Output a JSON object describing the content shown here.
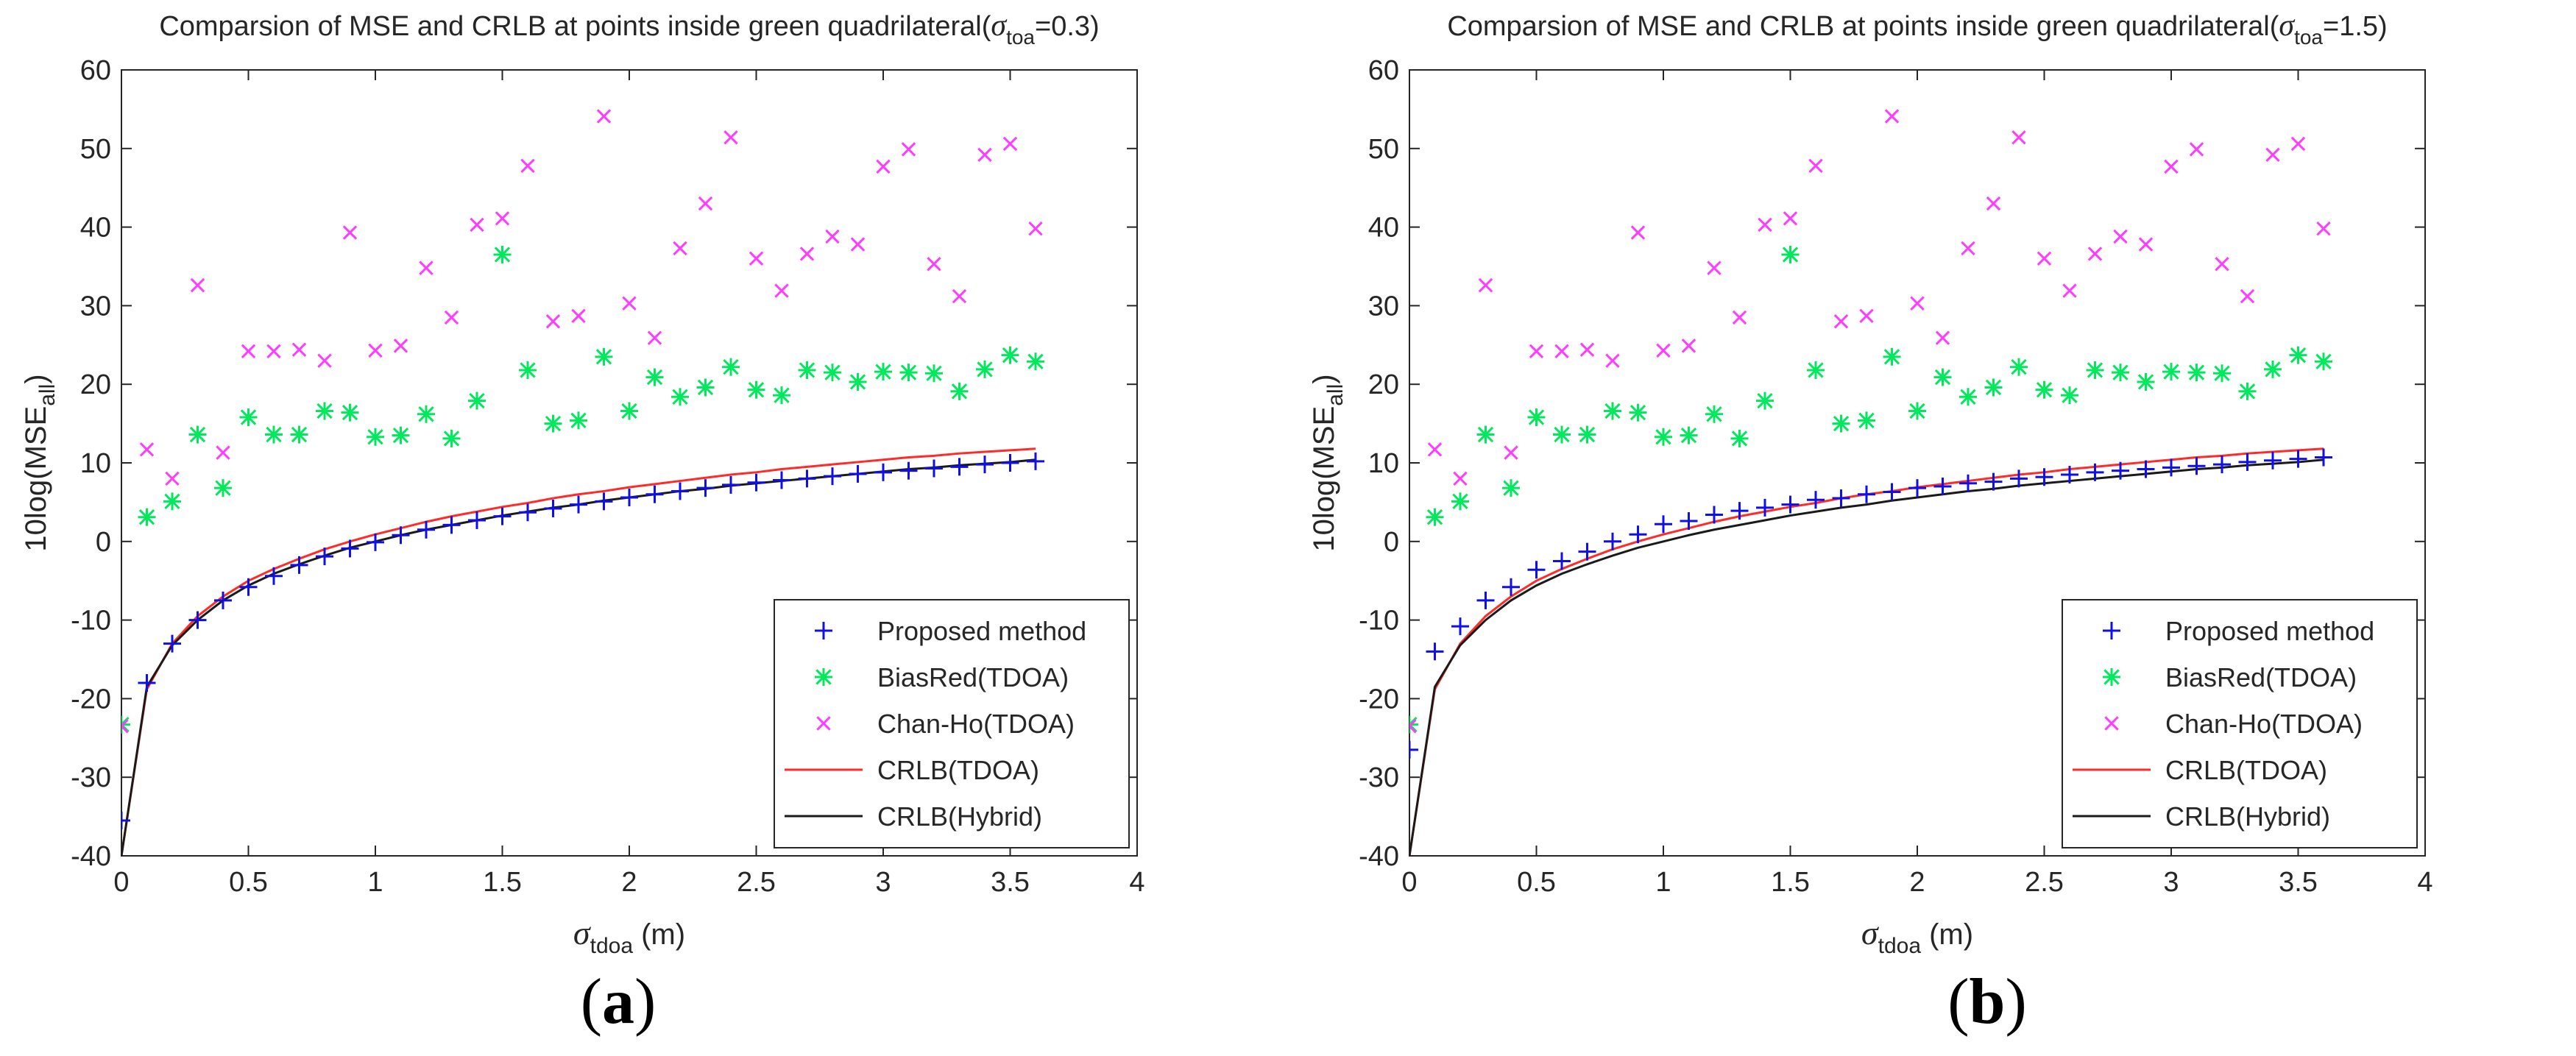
{
  "chart_data": [
    {
      "panel_label": "a",
      "type": "scatter",
      "title": "Comparsion of MSE and CRLB at points inside green quadrilateral(",
      "title_sigma": "σ",
      "title_sigma_sub": "toa",
      "title_value": "=0.3)",
      "xlabel_sigma": "σ",
      "xlabel_sub": "tdoa",
      "xlabel_unit": " (m)",
      "ylabel_prefix": "10log(MSE",
      "ylabel_sub": "all",
      "ylabel_suffix": ")",
      "xlim": [
        0,
        4
      ],
      "ylim": [
        -40,
        60
      ],
      "xticks": [
        "0",
        "0.5",
        "1",
        "1.5",
        "2",
        "2.5",
        "3",
        "3.5",
        "4"
      ],
      "yticks": [
        "-40",
        "-30",
        "-20",
        "-10",
        "0",
        "10",
        "20",
        "30",
        "40",
        "50",
        "60"
      ],
      "legend_position": "bottom-right",
      "x": [
        0,
        0.1,
        0.2,
        0.3,
        0.4,
        0.5,
        0.6,
        0.7,
        0.8,
        0.9,
        1.0,
        1.1,
        1.2,
        1.3,
        1.4,
        1.5,
        1.6,
        1.7,
        1.8,
        1.9,
        2.0,
        2.1,
        2.2,
        2.3,
        2.4,
        2.5,
        2.6,
        2.7,
        2.8,
        2.9,
        3.0,
        3.1,
        3.2,
        3.3,
        3.4,
        3.5,
        3.6
      ],
      "series": [
        {
          "name": "Proposed method",
          "marker": "plus",
          "color": "#1010e6",
          "values": [
            -35.5,
            -18,
            -13,
            -10,
            -7.5,
            -5.8,
            -4.4,
            -3,
            -1.9,
            -0.9,
            -0.1,
            0.8,
            1.5,
            2.1,
            2.7,
            3.2,
            3.7,
            4.2,
            4.7,
            5.1,
            5.6,
            6.0,
            6.4,
            6.8,
            7.2,
            7.5,
            7.8,
            8.0,
            8.3,
            8.6,
            8.8,
            9.0,
            9.3,
            9.5,
            9.8,
            10.0,
            10.2
          ]
        },
        {
          "name": "BiasRed(TDOA)",
          "marker": "asterisk",
          "color": "#00e85c",
          "values": [
            -23.3,
            3.1,
            5.1,
            13.6,
            6.8,
            15.8,
            13.6,
            13.6,
            16.6,
            16.4,
            13.3,
            13.5,
            16.2,
            13.1,
            17.9,
            36.5,
            21.8,
            15.0,
            15.4,
            23.5,
            16.6,
            20.9,
            18.4,
            19.6,
            22.2,
            19.3,
            18.6,
            21.8,
            21.5,
            20.3,
            21.6,
            21.5,
            21.4,
            19.1,
            21.9,
            23.7,
            22.9
          ]
        },
        {
          "name": "Chan-Ho(TDOA)",
          "marker": "cross",
          "color": "#ff3cff",
          "values": [
            -23.5,
            11.7,
            8.0,
            32.6,
            11.3,
            24.2,
            24.2,
            24.4,
            23.0,
            39.3,
            24.3,
            24.9,
            34.8,
            28.5,
            40.3,
            41.1,
            47.8,
            28.0,
            28.7,
            54.1,
            30.3,
            25.9,
            37.3,
            43.0,
            51.4,
            36.0,
            31.9,
            36.6,
            38.8,
            37.8,
            47.7,
            49.9,
            35.3,
            31.2,
            49.2,
            50.6,
            39.8
          ]
        },
        {
          "name": "CRLB(TDOA)",
          "marker": "line",
          "color": "#ff2a2a",
          "values": [
            -40,
            -18.8,
            -13,
            -9.5,
            -7.0,
            -5.0,
            -3.5,
            -2.2,
            -1.0,
            0.0,
            0.9,
            1.7,
            2.5,
            3.2,
            3.8,
            4.4,
            4.9,
            5.5,
            6.0,
            6.4,
            6.9,
            7.3,
            7.7,
            8.1,
            8.5,
            8.8,
            9.2,
            9.5,
            9.8,
            10.1,
            10.4,
            10.7,
            10.9,
            11.2,
            11.4,
            11.6,
            11.8
          ]
        },
        {
          "name": "CRLB(Hybrid)",
          "marker": "line",
          "color": "#1a1a1a",
          "values": [
            -40,
            -18.5,
            -13.2,
            -10,
            -7.5,
            -5.6,
            -4.1,
            -2.9,
            -1.8,
            -0.8,
            0.0,
            0.8,
            1.5,
            2.1,
            2.7,
            3.3,
            3.8,
            4.3,
            4.7,
            5.2,
            5.6,
            6.0,
            6.4,
            6.7,
            7.1,
            7.4,
            7.7,
            8.0,
            8.3,
            8.6,
            8.9,
            9.2,
            9.4,
            9.7,
            9.9,
            10.1,
            10.4
          ]
        }
      ]
    },
    {
      "panel_label": "b",
      "type": "scatter",
      "title": "Comparsion of MSE and CRLB at points inside green quadrilateral(",
      "title_sigma": "σ",
      "title_sigma_sub": "toa",
      "title_value": "=1.5)",
      "xlabel_sigma": "σ",
      "xlabel_sub": "tdoa",
      "xlabel_unit": " (m)",
      "ylabel_prefix": "10log(MSE",
      "ylabel_sub": "all",
      "ylabel_suffix": ")",
      "xlim": [
        0,
        4
      ],
      "ylim": [
        -40,
        60
      ],
      "xticks": [
        "0",
        "0.5",
        "1",
        "1.5",
        "2",
        "2.5",
        "3",
        "3.5",
        "4"
      ],
      "yticks": [
        "-40",
        "-30",
        "-20",
        "-10",
        "0",
        "10",
        "20",
        "30",
        "40",
        "50",
        "60"
      ],
      "legend_position": "bottom-right",
      "x": [
        0,
        0.1,
        0.2,
        0.3,
        0.4,
        0.5,
        0.6,
        0.7,
        0.8,
        0.9,
        1.0,
        1.1,
        1.2,
        1.3,
        1.4,
        1.5,
        1.6,
        1.7,
        1.8,
        1.9,
        2.0,
        2.1,
        2.2,
        2.3,
        2.4,
        2.5,
        2.6,
        2.7,
        2.8,
        2.9,
        3.0,
        3.1,
        3.2,
        3.3,
        3.4,
        3.5,
        3.6
      ],
      "series": [
        {
          "name": "Proposed method",
          "marker": "plus",
          "color": "#1010e6",
          "values": [
            -26.5,
            -14,
            -10.8,
            -7.5,
            -5.8,
            -3.6,
            -2.5,
            -1.3,
            0.0,
            0.9,
            2.2,
            2.6,
            3.4,
            3.9,
            4.3,
            4.7,
            5.3,
            5.5,
            6.0,
            6.3,
            6.8,
            7.0,
            7.4,
            7.6,
            8.0,
            8.2,
            8.5,
            8.8,
            9.0,
            9.2,
            9.4,
            9.6,
            9.8,
            10.1,
            10.3,
            10.5,
            10.7
          ]
        },
        {
          "name": "BiasRed(TDOA)",
          "marker": "asterisk",
          "color": "#00e85c",
          "values": [
            -23.3,
            3.1,
            5.1,
            13.6,
            6.8,
            15.8,
            13.6,
            13.6,
            16.6,
            16.4,
            13.3,
            13.5,
            16.2,
            13.1,
            17.9,
            36.5,
            21.8,
            15.0,
            15.4,
            23.5,
            16.6,
            20.9,
            18.4,
            19.6,
            22.2,
            19.3,
            18.6,
            21.8,
            21.5,
            20.3,
            21.6,
            21.5,
            21.4,
            19.1,
            21.9,
            23.7,
            22.9
          ]
        },
        {
          "name": "Chan-Ho(TDOA)",
          "marker": "cross",
          "color": "#ff3cff",
          "values": [
            -23.5,
            11.7,
            8.0,
            32.6,
            11.3,
            24.2,
            24.2,
            24.4,
            23.0,
            39.3,
            24.3,
            24.9,
            34.8,
            28.5,
            40.3,
            41.1,
            47.8,
            28.0,
            28.7,
            54.1,
            30.3,
            25.9,
            37.3,
            43.0,
            51.4,
            36.0,
            31.9,
            36.6,
            38.8,
            37.8,
            47.7,
            49.9,
            35.3,
            31.2,
            49.2,
            50.6,
            39.8
          ]
        },
        {
          "name": "CRLB(TDOA)",
          "marker": "line",
          "color": "#ff2a2a",
          "values": [
            -40,
            -18.8,
            -13,
            -9.5,
            -7.0,
            -5.0,
            -3.5,
            -2.2,
            -1.0,
            0.0,
            0.9,
            1.7,
            2.5,
            3.2,
            3.8,
            4.4,
            4.9,
            5.5,
            6.0,
            6.4,
            6.9,
            7.3,
            7.7,
            8.1,
            8.5,
            8.8,
            9.2,
            9.5,
            9.8,
            10.1,
            10.4,
            10.7,
            10.9,
            11.2,
            11.4,
            11.6,
            11.8
          ]
        },
        {
          "name": "CRLB(Hybrid)",
          "marker": "line",
          "color": "#1a1a1a",
          "values": [
            -40,
            -18.5,
            -13.2,
            -10,
            -7.5,
            -5.6,
            -4.1,
            -2.9,
            -1.8,
            -0.8,
            0.0,
            0.8,
            1.5,
            2.1,
            2.7,
            3.3,
            3.8,
            4.3,
            4.7,
            5.2,
            5.6,
            6.0,
            6.4,
            6.7,
            7.1,
            7.4,
            7.7,
            8.0,
            8.3,
            8.6,
            8.9,
            9.2,
            9.4,
            9.7,
            9.9,
            10.1,
            10.4
          ]
        }
      ]
    }
  ]
}
